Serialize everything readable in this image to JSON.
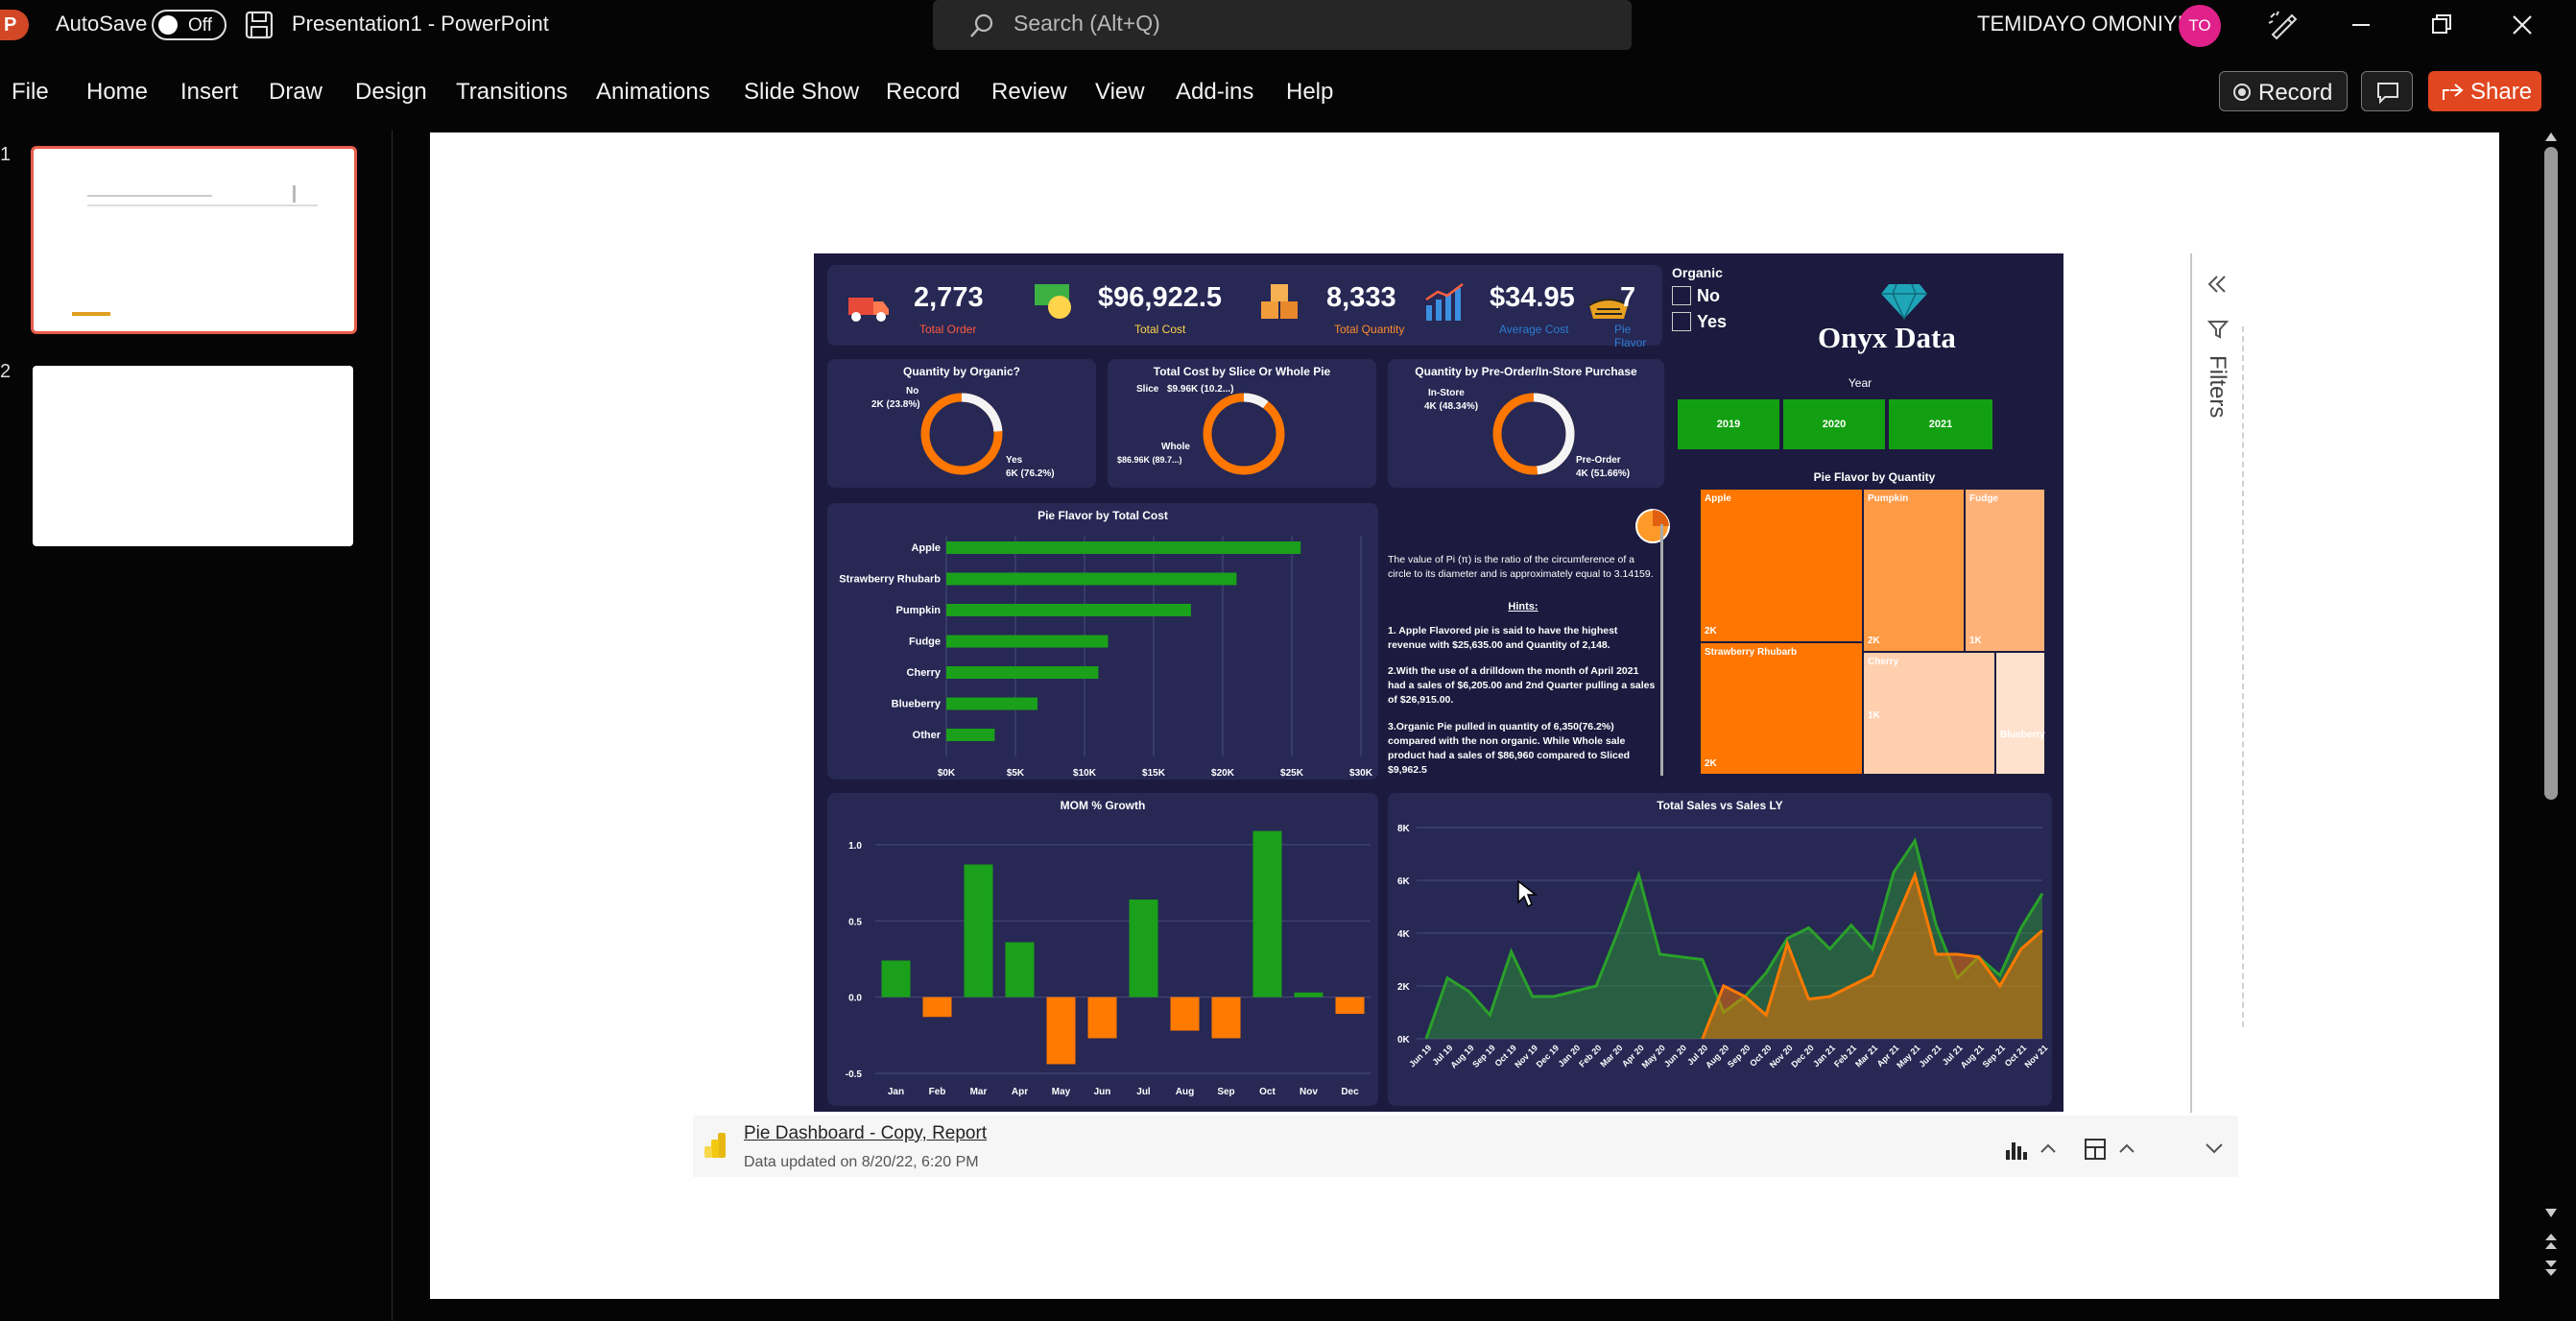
{
  "titlebar": {
    "app_logo": "P",
    "autosave_label": "AutoSave",
    "autosave_state": "Off",
    "document_title": "Presentation1  -  PowerPoint",
    "search_placeholder": "Search (Alt+Q)",
    "user_name": "TEMIDAYO OMONIYI",
    "user_initials": "TO"
  },
  "ribbon": {
    "tabs": [
      "File",
      "Home",
      "Insert",
      "Draw",
      "Design",
      "Transitions",
      "Animations",
      "Slide Show",
      "Record",
      "Review",
      "View",
      "Add-ins",
      "Help"
    ],
    "record_label": "Record",
    "share_label": "Share"
  },
  "thumbnails": {
    "numbers": [
      "1",
      "2"
    ]
  },
  "dashboard": {
    "kpis": [
      {
        "value": "2,773",
        "label": "Total Order",
        "color": "#ff5a3c"
      },
      {
        "value": "$96,922.5",
        "label": "Total Cost",
        "color": "#ffd34a"
      },
      {
        "value": "8,333",
        "label": "Total Quantity",
        "color": "#ff8c2a"
      },
      {
        "value": "$34.95",
        "label": "Average Cost",
        "color": "#2d7dd2"
      },
      {
        "value": "7",
        "label": "Pie Flavor",
        "color": "#2d7dd2"
      }
    ],
    "organic": {
      "title": "Organic",
      "options": [
        "No",
        "Yes"
      ]
    },
    "brand": "Onyx Data",
    "year": {
      "title": "Year",
      "options": [
        "2019",
        "2020",
        "2021"
      ]
    },
    "donuts": [
      {
        "title": "Quantity by Organic?",
        "top_label": "No",
        "top_value": "2K (23.8%)",
        "bottom_label": "Yes",
        "bottom_value": "6K (76.2%)",
        "share": 0.238
      },
      {
        "title": "Total Cost by Slice Or Whole Pie",
        "top_label": "Slice",
        "top_value": "$9.96K (10.2...)",
        "bottom_label": "Whole",
        "bottom_value": "$86.96K (89.7...)",
        "share": 0.102
      },
      {
        "title": "Quantity by Pre-Order/In-Store Purchase",
        "top_label": "In-Store",
        "top_value": "4K (48.34%)",
        "bottom_label": "Pre-Order",
        "bottom_value": "4K (51.66%)",
        "share": 0.4834
      }
    ],
    "hints": {
      "intro": "The value of Pi (π) is the ratio of the circumference of a circle to its diameter and is approximately equal to 3.14159.",
      "title": "Hints:",
      "items": [
        "1. Apple Flavored pie is said to have the highest revenue with $25,635.00 and Quantity of 2,148.",
        "2.With the use of a drilldown the month of April 2021 had a sales of $6,205.00 and 2nd Quarter pulling a sales of $26,915.00.",
        "3.Organic Pie pulled in quantity of 6,350(76.2%) compared with the non organic. While Whole sale product had a sales of $86,960 compared to Sliced $9,962.5"
      ]
    },
    "treemap": {
      "title": "Pie Flavor by Quantity",
      "cells": [
        {
          "name": "Apple",
          "value": "2K"
        },
        {
          "name": "Pumpkin",
          "value": "2K"
        },
        {
          "name": "Fudge",
          "value": "1K"
        },
        {
          "name": "Strawberry Rhubarb",
          "value": "2K"
        },
        {
          "name": "Cherry",
          "value": "1K"
        },
        {
          "name": "Blueberry",
          "value": ""
        }
      ]
    },
    "report": {
      "name": "Pie Dashboard - Copy, Report",
      "updated": "Data updated on 8/20/22, 6:20 PM"
    },
    "filters_label": "Filters"
  },
  "chart_data": [
    {
      "type": "bar",
      "title": "Pie Flavor by Total Cost",
      "orientation": "horizontal",
      "categories": [
        "Apple",
        "Strawberry Rhubarb",
        "Pumpkin",
        "Fudge",
        "Cherry",
        "Blueberry",
        "Other"
      ],
      "values": [
        25635,
        21000,
        17700,
        11700,
        11000,
        6600,
        3500
      ],
      "xlim": [
        0,
        30000
      ],
      "ticks": [
        "$0K",
        "$5K",
        "$10K",
        "$15K",
        "$20K",
        "$25K",
        "$30K"
      ],
      "color": "#1aa01a"
    },
    {
      "type": "bar",
      "title": "MOM % Growth",
      "categories": [
        "Jan",
        "Feb",
        "Mar",
        "Apr",
        "May",
        "Jun",
        "Jul",
        "Aug",
        "Sep",
        "Oct",
        "Nov",
        "Dec"
      ],
      "values": [
        0.24,
        -0.13,
        0.87,
        0.36,
        -0.44,
        -0.27,
        0.64,
        -0.22,
        -0.27,
        1.09,
        0.03,
        -0.11
      ],
      "ylim": [
        -0.5,
        1.1
      ],
      "ticks": [
        "1.0",
        "0.5",
        "0.0",
        "-0.5"
      ],
      "positive_color": "#1aa01a",
      "negative_color": "#ff7a00"
    },
    {
      "type": "area",
      "title": "Total Sales vs Sales LY",
      "x": [
        "Jun 19",
        "Jul 19",
        "Aug 19",
        "Sep 19",
        "Oct 19",
        "Nov 19",
        "Dec 19",
        "Jan 20",
        "Feb 20",
        "Mar 20",
        "Apr 20",
        "May 20",
        "Jun 20",
        "Jul 20",
        "Aug 20",
        "Sep 20",
        "Oct 20",
        "Nov 20",
        "Dec 20",
        "Jan 21",
        "Feb 21",
        "Mar 21",
        "Apr 21",
        "May 21",
        "Jun 21",
        "Jul 21",
        "Aug 21",
        "Sep 21",
        "Oct 21",
        "Nov 21"
      ],
      "ylim": [
        0,
        8000
      ],
      "ticks": [
        "8K",
        "6K",
        "4K",
        "2K",
        "0K"
      ],
      "series": [
        {
          "values": [
            0,
            2300,
            1800,
            900,
            3300,
            1600,
            1600,
            1800,
            2000,
            4000,
            6200,
            3200,
            3100,
            3000,
            1000,
            1600,
            2500,
            3800,
            4200,
            3400,
            4300,
            3400,
            6300,
            7500,
            4300,
            2300,
            3100,
            2400,
            4200,
            5500
          ],
          "color": "#2aa02a"
        },
        {
          "values": [
            null,
            null,
            null,
            null,
            null,
            null,
            null,
            null,
            null,
            null,
            null,
            null,
            null,
            0,
            2000,
            1600,
            900,
            3600,
            1500,
            1600,
            2000,
            2400,
            4300,
            6200,
            3200,
            3200,
            3100,
            2000,
            3400,
            4100
          ],
          "color": "#ff7a00"
        }
      ]
    }
  ]
}
